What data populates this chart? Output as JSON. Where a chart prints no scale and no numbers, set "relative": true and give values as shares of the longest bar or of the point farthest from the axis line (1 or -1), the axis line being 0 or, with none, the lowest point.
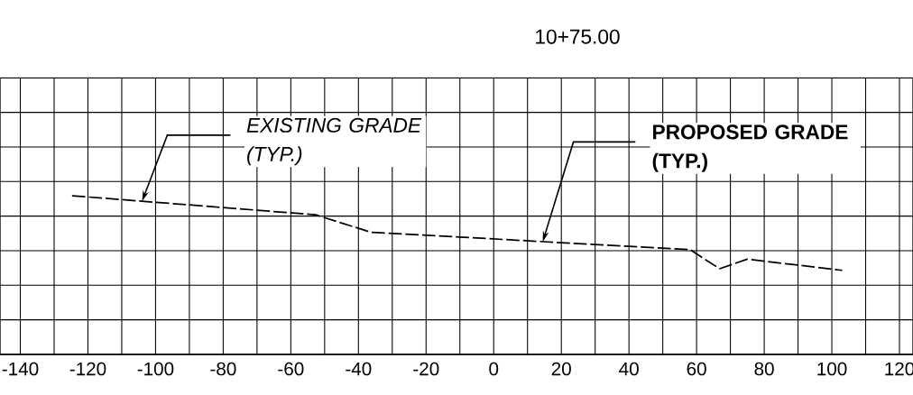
{
  "chart_data": {
    "type": "line",
    "title": "10+75.00",
    "relative": true,
    "x": [
      -124.7,
      -52.7,
      -36.3,
      58.1,
      66.8,
      75.0,
      103.1
    ],
    "values": [
      1,
      0.88,
      0.77,
      0.66,
      0.54,
      0.6,
      0.53
    ],
    "color": "#000000",
    "line_style": "dashed",
    "marker": "none",
    "grid": true,
    "tick_labels": "x",
    "xlim": [
      -146,
      124
    ],
    "xticks": [
      -140,
      {
        "value": -130,
        "label": null
      },
      -120,
      {
        "value": -110,
        "label": null
      },
      -100,
      {
        "value": -90,
        "label": null
      },
      -80,
      {
        "value": -70,
        "label": null
      },
      -60,
      {
        "value": -50,
        "label": null
      },
      -40,
      {
        "value": -30,
        "label": null
      },
      -20,
      {
        "value": -10,
        "label": null
      },
      0,
      {
        "value": 10,
        "label": null
      },
      20,
      {
        "value": 30,
        "label": null
      },
      40,
      {
        "value": 50,
        "label": null
      },
      60,
      {
        "value": 70,
        "label": null
      },
      80,
      {
        "value": 90,
        "label": null
      },
      100,
      {
        "value": 110,
        "label": null
      },
      120
    ],
    "annotations": [
      {
        "text": "EXISTING GRADE (TYP.)",
        "x": -104,
        "y": 0.965
      },
      {
        "text": "PROPOSED GRADE (TYP.)",
        "x": 14.5,
        "y": 0.71
      }
    ]
  }
}
